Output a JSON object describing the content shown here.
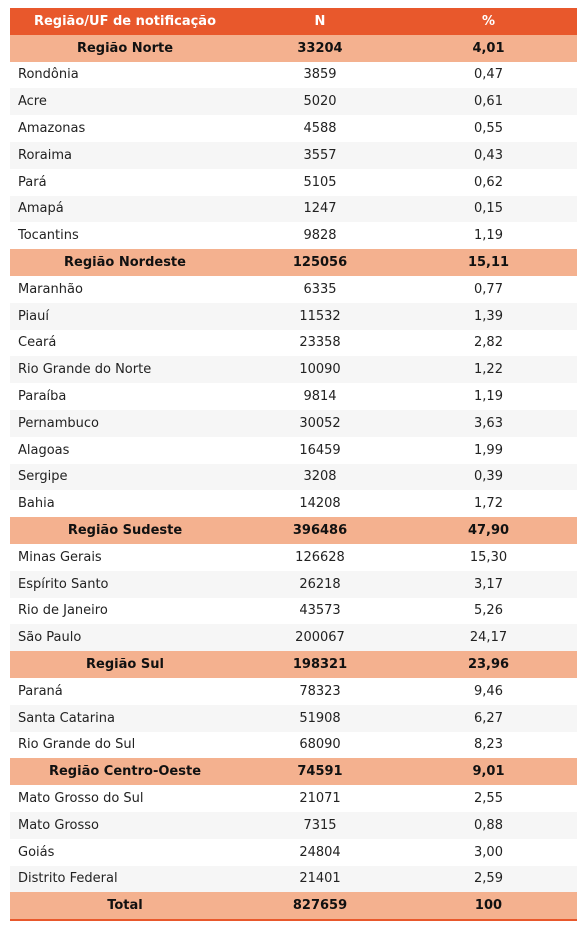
{
  "table": {
    "header": [
      "Região/UF de notificação",
      "N",
      "%"
    ],
    "groups": [
      {
        "region": [
          "Região Norte",
          "33204",
          "4,01"
        ],
        "states": [
          [
            "Rondônia",
            "3859",
            "0,47"
          ],
          [
            "Acre",
            "5020",
            "0,61"
          ],
          [
            "Amazonas",
            "4588",
            "0,55"
          ],
          [
            "Roraima",
            "3557",
            "0,43"
          ],
          [
            "Pará",
            "5105",
            "0,62"
          ],
          [
            "Amapá",
            "1247",
            "0,15"
          ],
          [
            "Tocantins",
            "9828",
            "1,19"
          ]
        ]
      },
      {
        "region": [
          "Região Nordeste",
          "125056",
          "15,11"
        ],
        "states": [
          [
            "Maranhão",
            "6335",
            "0,77"
          ],
          [
            "Piauí",
            "11532",
            "1,39"
          ],
          [
            "Ceará",
            "23358",
            "2,82"
          ],
          [
            "Rio Grande do Norte",
            "10090",
            "1,22"
          ],
          [
            "Paraíba",
            "9814",
            "1,19"
          ],
          [
            "Pernambuco",
            "30052",
            "3,63"
          ],
          [
            "Alagoas",
            "16459",
            "1,99"
          ],
          [
            "Sergipe",
            "3208",
            "0,39"
          ],
          [
            "Bahia",
            "14208",
            "1,72"
          ]
        ]
      },
      {
        "region": [
          "Região Sudeste",
          "396486",
          "47,90"
        ],
        "states": [
          [
            "Minas Gerais",
            "126628",
            "15,30"
          ],
          [
            "Espírito Santo",
            "26218",
            "3,17"
          ],
          [
            "Rio de Janeiro",
            "43573",
            "5,26"
          ],
          [
            "São Paulo",
            "200067",
            "24,17"
          ]
        ]
      },
      {
        "region": [
          "Região Sul",
          "198321",
          "23,96"
        ],
        "states": [
          [
            "Paraná",
            "78323",
            "9,46"
          ],
          [
            "Santa Catarina",
            "51908",
            "6,27"
          ],
          [
            "Rio Grande do Sul",
            "68090",
            "8,23"
          ]
        ]
      },
      {
        "region": [
          "Região Centro-Oeste",
          "74591",
          "9,01"
        ],
        "states": [
          [
            "Mato Grosso do Sul",
            "21071",
            "2,55"
          ],
          [
            "Mato Grosso",
            "7315",
            "0,88"
          ],
          [
            "Goiás",
            "24804",
            "3,00"
          ],
          [
            "Distrito Federal",
            "21401",
            "2,59"
          ]
        ]
      }
    ],
    "total": [
      "Total",
      "827659",
      "100"
    ]
  }
}
